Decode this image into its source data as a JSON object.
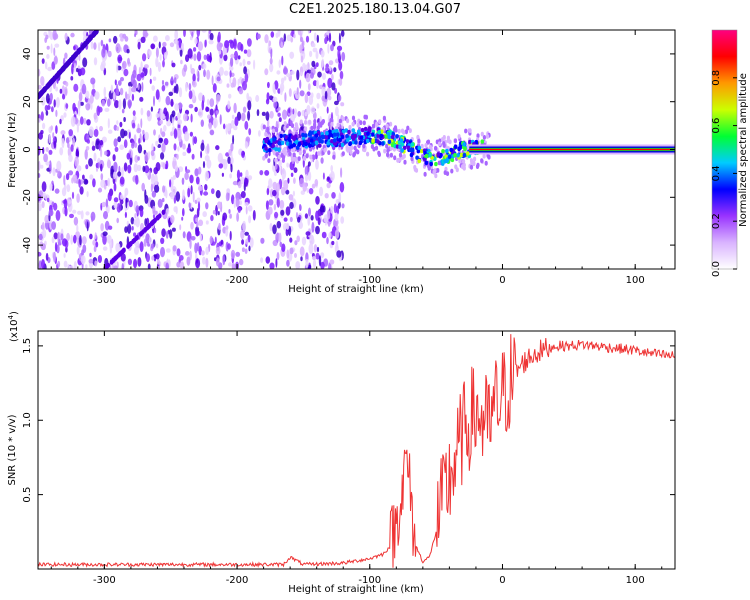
{
  "title": "C2E1.2025.180.13.04.G07",
  "chart_data": [
    {
      "type": "heatmap",
      "xlabel": "Height of straight line (km)",
      "ylabel": "Frequency (Hz)",
      "xlim": [
        -350,
        130
      ],
      "ylim": [
        -50,
        50
      ],
      "x_ticks": [
        -300,
        -200,
        -100,
        0,
        100
      ],
      "x_tick_labels": [
        "-300",
        "-200",
        "-100",
        "0",
        "100"
      ],
      "y_ticks": [
        -40,
        -20,
        0,
        20,
        40
      ],
      "y_tick_labels": [
        "-40",
        "-20",
        "0",
        "20",
        "40"
      ],
      "colorbar": {
        "label": "Normalized spectral amplitude",
        "range": [
          0.0,
          1.0
        ],
        "ticks": [
          0.0,
          0.2,
          0.4,
          0.6,
          0.8
        ],
        "tick_labels": [
          "0.0",
          "0.2",
          "0.4",
          "0.6",
          "0.8"
        ],
        "colors": [
          "#ffffff",
          "#d9b3ff",
          "#9933ff",
          "#0000ff",
          "#00ccff",
          "#00ff33",
          "#ccff00",
          "#ff9900",
          "#ff0000",
          "#ff0080"
        ]
      },
      "features": {
        "noise_region_x": [
          -350,
          -120
        ],
        "ridge_points": [
          {
            "x": -180,
            "y": 2
          },
          {
            "x": -150,
            "y": 4
          },
          {
            "x": -120,
            "y": 5
          },
          {
            "x": -100,
            "y": 6
          },
          {
            "x": -85,
            "y": 5
          },
          {
            "x": -70,
            "y": 1
          },
          {
            "x": -60,
            "y": -3
          },
          {
            "x": -50,
            "y": -4
          },
          {
            "x": -40,
            "y": -2
          },
          {
            "x": -30,
            "y": 0
          },
          {
            "x": -20,
            "y": 0.5
          },
          {
            "x": 0,
            "y": 0
          },
          {
            "x": 50,
            "y": 0
          },
          {
            "x": 100,
            "y": 0
          },
          {
            "x": 130,
            "y": 0
          }
        ]
      }
    },
    {
      "type": "line",
      "xlabel": "Height of straight line (km)",
      "ylabel": "SNR (10 * v/v)",
      "scale_label": "(x10",
      "scale_exp": "4",
      "scale_close": ")",
      "xlim": [
        -350,
        130
      ],
      "ylim": [
        0,
        1.6
      ],
      "x_ticks": [
        -300,
        -200,
        -100,
        0,
        100
      ],
      "x_tick_labels": [
        "-300",
        "-200",
        "-100",
        "0",
        "100"
      ],
      "y_ticks": [
        0.5,
        1.0,
        1.5
      ],
      "y_tick_labels": [
        "0.5",
        "1.0",
        "1.5"
      ],
      "series": [
        {
          "color": "#ee3333",
          "x": [
            -350,
            -300,
            -250,
            -200,
            -165,
            -160,
            -150,
            -120,
            -100,
            -90,
            -85,
            -80,
            -78,
            -75,
            -72,
            -70,
            -68,
            -65,
            -60,
            -55,
            -50,
            -45,
            -40,
            -35,
            -30,
            -25,
            -20,
            -15,
            -10,
            -5,
            0,
            5,
            10,
            15,
            20,
            25,
            30,
            40,
            50,
            60,
            70,
            80,
            90,
            100,
            110,
            120,
            130
          ],
          "y": [
            0.03,
            0.03,
            0.03,
            0.03,
            0.03,
            0.08,
            0.03,
            0.04,
            0.07,
            0.1,
            0.15,
            0.3,
            0.45,
            0.55,
            0.75,
            0.55,
            0.35,
            0.15,
            0.05,
            0.08,
            0.25,
            0.45,
            0.6,
            0.75,
            0.9,
            1.0,
            1.05,
            1.0,
            0.95,
            1.1,
            1.15,
            1.25,
            1.32,
            1.38,
            1.42,
            1.45,
            1.47,
            1.5,
            1.5,
            1.51,
            1.5,
            1.49,
            1.48,
            1.47,
            1.45,
            1.44,
            1.43
          ]
        }
      ]
    }
  ]
}
